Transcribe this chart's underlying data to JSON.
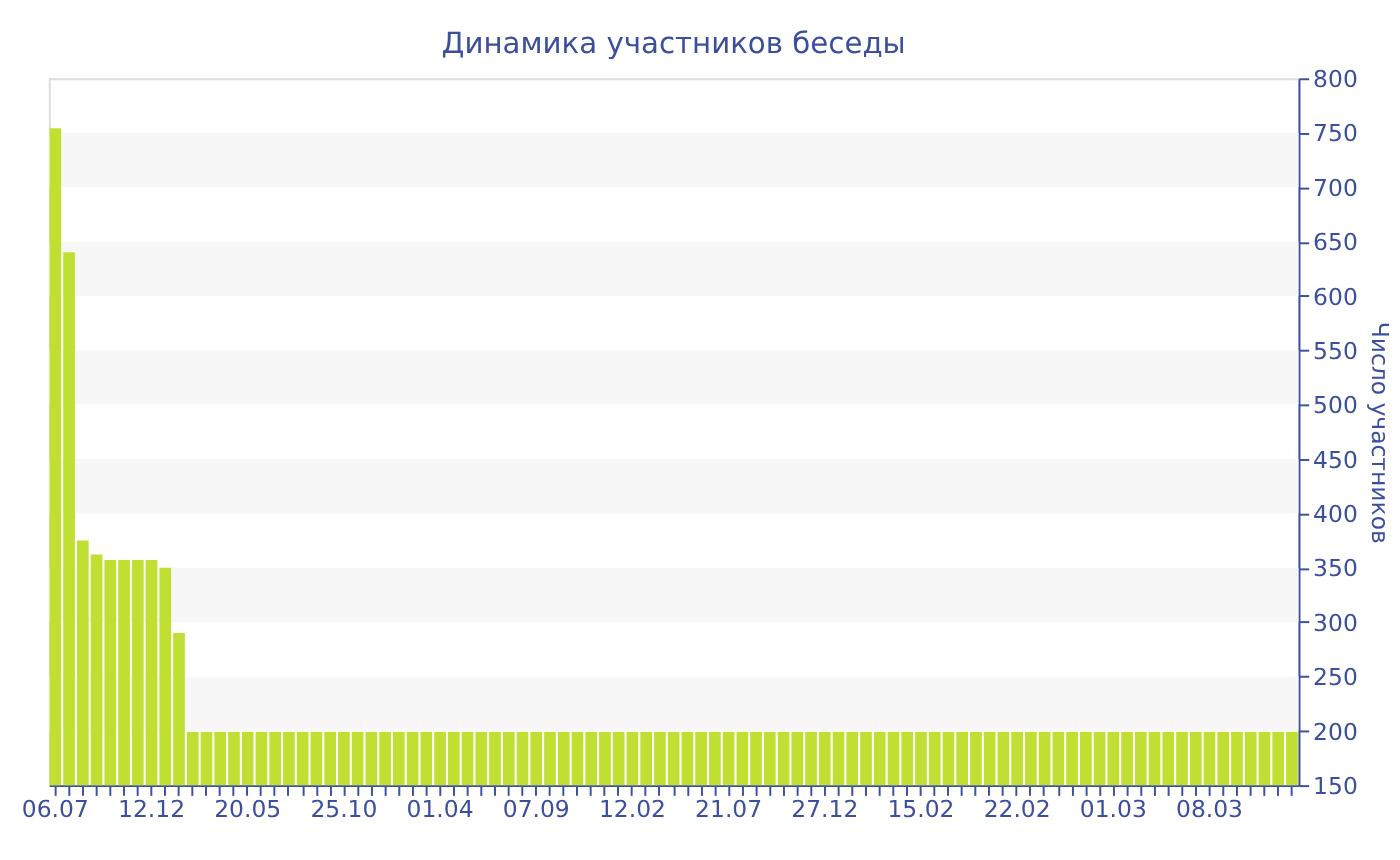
{
  "chart_data": {
    "type": "bar",
    "title": "Динамика участников беседы",
    "ylabel": "Число участников",
    "categories": [
      "06.07",
      null,
      null,
      null,
      null,
      null,
      null,
      "12.12",
      null,
      null,
      null,
      null,
      null,
      null,
      "20.05",
      null,
      null,
      null,
      null,
      null,
      null,
      "25.10",
      null,
      null,
      null,
      null,
      null,
      null,
      "01.04",
      null,
      null,
      null,
      null,
      null,
      null,
      "07.09",
      null,
      null,
      null,
      null,
      null,
      null,
      "12.02",
      null,
      null,
      null,
      null,
      null,
      null,
      "21.07",
      null,
      null,
      null,
      null,
      null,
      null,
      "27.12",
      null,
      null,
      null,
      null,
      null,
      null,
      "15.02",
      null,
      null,
      null,
      null,
      null,
      null,
      "22.02",
      null,
      null,
      null,
      null,
      null,
      null,
      "01.03",
      null,
      null,
      null,
      null,
      null,
      null,
      "08.03",
      null,
      null,
      null,
      null,
      null,
      null
    ],
    "values": [
      754,
      640,
      375,
      362,
      357,
      357,
      357,
      357,
      350,
      290,
      199,
      199,
      199,
      199,
      199,
      199,
      199,
      199,
      199,
      199,
      199,
      199,
      199,
      199,
      199,
      199,
      199,
      199,
      199,
      199,
      199,
      199,
      199,
      199,
      199,
      199,
      199,
      199,
      199,
      199,
      199,
      199,
      199,
      199,
      199,
      199,
      199,
      199,
      199,
      199,
      199,
      199,
      199,
      199,
      199,
      199,
      199,
      199,
      199,
      199,
      199,
      199,
      199,
      199,
      199,
      199,
      199,
      199,
      199,
      199,
      199,
      199,
      199,
      199,
      199,
      199,
      199,
      199,
      199,
      199,
      199,
      199,
      199,
      199,
      199,
      199,
      199,
      199,
      199,
      199,
      199
    ],
    "color": "#bfe032",
    "ylim": [
      150,
      800
    ],
    "yticks": [
      150,
      200,
      250,
      300,
      350,
      400,
      450,
      500,
      550,
      600,
      650,
      700,
      750,
      800
    ],
    "bands": [
      {
        "axis": "y",
        "from": 200,
        "to": 250,
        "color": "#f7f7f7"
      },
      {
        "axis": "y",
        "from": 300,
        "to": 350,
        "color": "#f7f7f7"
      },
      {
        "axis": "y",
        "from": 400,
        "to": 450,
        "color": "#f7f7f7"
      },
      {
        "axis": "y",
        "from": 500,
        "to": 550,
        "color": "#f7f7f7"
      },
      {
        "axis": "y",
        "from": 600,
        "to": 650,
        "color": "#f7f7f7"
      },
      {
        "axis": "y",
        "from": 700,
        "to": 750,
        "color": "#f7f7f7"
      }
    ]
  }
}
